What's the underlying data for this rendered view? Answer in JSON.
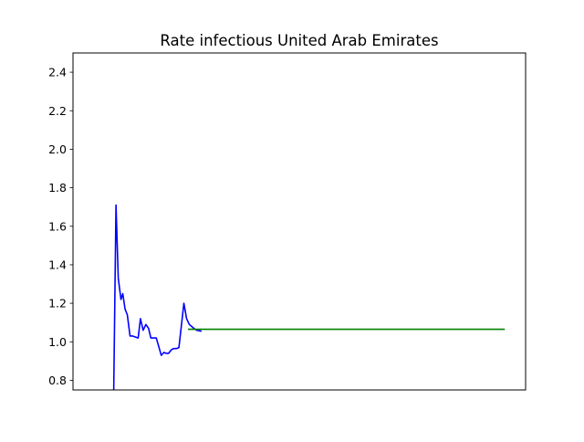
{
  "chart_data": {
    "type": "line",
    "title": "Rate infectious United Arab Emirates",
    "xlabel": "",
    "ylabel": "",
    "ylim": [
      0.75,
      2.5
    ],
    "xlim": [
      0,
      100
    ],
    "y_ticks": [
      "0.8",
      "1.0",
      "1.2",
      "1.4",
      "1.6",
      "1.8",
      "2.0",
      "2.2",
      "2.4"
    ],
    "y_tick_values": [
      0.8,
      1.0,
      1.2,
      1.4,
      1.6,
      1.8,
      2.0,
      2.2,
      2.4
    ],
    "x_ticks": [],
    "grid": false,
    "series": [
      {
        "color": "#0000ff",
        "x": [
          9,
          9.5,
          10,
          10.6,
          11,
          11.5,
          12,
          12.6,
          13.2,
          14.4,
          14.9,
          15.5,
          16.1,
          16.7,
          17.2,
          17.8,
          18.4,
          19.5,
          20.1,
          20.6,
          21.1,
          21.8,
          22.3,
          22.9,
          23.4,
          24.5,
          25.1,
          25.7,
          26.2,
          26.7,
          27.3,
          28.4
        ],
        "y": [
          0.75,
          1.71,
          1.33,
          1.22,
          1.25,
          1.17,
          1.14,
          1.03,
          1.03,
          1.02,
          1.12,
          1.06,
          1.09,
          1.07,
          1.02,
          1.02,
          1.02,
          0.93,
          0.945,
          0.94,
          0.94,
          0.96,
          0.965,
          0.965,
          0.97,
          1.2,
          1.12,
          1.09,
          1.08,
          1.07,
          1.06,
          1.055
        ]
      },
      {
        "color": "#008000",
        "x": [
          25.4,
          95.4
        ],
        "y": [
          1.065,
          1.065
        ]
      }
    ]
  }
}
